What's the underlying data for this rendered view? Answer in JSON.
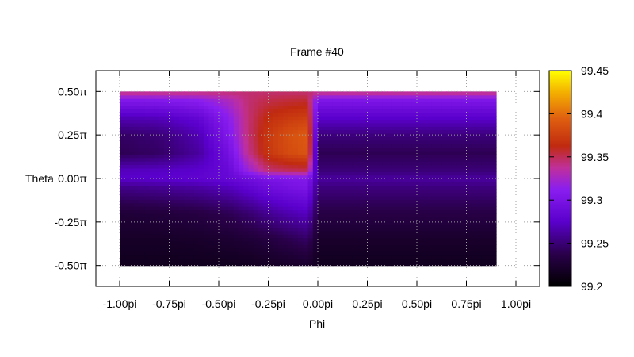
{
  "chart_data": {
    "type": "heatmap",
    "title": "Frame #40",
    "xlabel": "Phi",
    "ylabel": "Theta",
    "xlim": [
      -1.12,
      1.12
    ],
    "ylim": [
      -0.62,
      0.62
    ],
    "grid": true,
    "x_ticks": [
      {
        "value": -1.0,
        "label": "-1.00pi"
      },
      {
        "value": -0.75,
        "label": "-0.75pi"
      },
      {
        "value": -0.5,
        "label": "-0.50pi"
      },
      {
        "value": -0.25,
        "label": "-0.25pi"
      },
      {
        "value": 0.0,
        "label": "0.00pi"
      },
      {
        "value": 0.25,
        "label": "0.25pi"
      },
      {
        "value": 0.5,
        "label": "0.50pi"
      },
      {
        "value": 0.75,
        "label": "0.75pi"
      },
      {
        "value": 1.0,
        "label": "1.00pi"
      }
    ],
    "y_ticks": [
      {
        "value": 0.5,
        "label": "0.50π"
      },
      {
        "value": 0.25,
        "label": "0.25π"
      },
      {
        "value": 0.0,
        "label": "0.00π"
      },
      {
        "value": -0.25,
        "label": "-0.25π"
      },
      {
        "value": -0.5,
        "label": "-0.50π"
      }
    ],
    "data_extent": {
      "x": [
        -1.0,
        0.9
      ],
      "y": [
        -0.5,
        0.5
      ]
    },
    "colorbar": {
      "range": [
        99.2,
        99.45
      ],
      "ticks": [
        {
          "value": 99.2,
          "label": "99.2"
        },
        {
          "value": 99.25,
          "label": "99.25"
        },
        {
          "value": 99.3,
          "label": "99.3"
        },
        {
          "value": 99.35,
          "label": "99.35"
        },
        {
          "value": 99.4,
          "label": "99.4"
        },
        {
          "value": 99.45,
          "label": "99.45"
        }
      ],
      "palette": "black-purple-red-orange-yellow"
    },
    "phi": [
      -1.0,
      -0.8,
      -0.6,
      -0.45,
      -0.35,
      -0.25,
      -0.15,
      -0.05,
      0.0,
      0.1,
      0.3,
      0.5,
      0.7,
      0.9
    ],
    "theta": [
      -0.5,
      -0.35,
      -0.2,
      -0.05,
      0.0,
      0.05,
      0.15,
      0.25,
      0.35,
      0.45,
      0.5
    ],
    "values": [
      [
        99.215,
        99.215,
        99.215,
        99.215,
        99.216,
        99.218,
        99.22,
        99.222,
        99.215,
        99.215,
        99.215,
        99.215,
        99.215,
        99.215
      ],
      [
        99.22,
        99.22,
        99.222,
        99.225,
        99.228,
        99.232,
        99.238,
        99.245,
        99.222,
        99.222,
        99.222,
        99.222,
        99.222,
        99.222
      ],
      [
        99.228,
        99.23,
        99.234,
        99.24,
        99.248,
        99.258,
        99.266,
        99.272,
        99.235,
        99.235,
        99.235,
        99.235,
        99.235,
        99.235
      ],
      [
        99.255,
        99.258,
        99.263,
        99.27,
        99.28,
        99.29,
        99.296,
        99.3,
        99.252,
        99.252,
        99.252,
        99.252,
        99.252,
        99.252
      ],
      [
        99.275,
        99.277,
        99.28,
        99.284,
        99.292,
        99.3,
        99.304,
        99.306,
        99.262,
        99.262,
        99.262,
        99.262,
        99.262,
        99.262
      ],
      [
        99.27,
        99.272,
        99.276,
        99.286,
        99.32,
        99.345,
        99.35,
        99.352,
        99.25,
        99.25,
        99.25,
        99.25,
        99.25,
        99.25
      ],
      [
        99.24,
        99.245,
        99.262,
        99.295,
        99.34,
        99.37,
        99.382,
        99.388,
        99.24,
        99.24,
        99.24,
        99.24,
        99.24,
        99.24
      ],
      [
        99.245,
        99.25,
        99.268,
        99.305,
        99.345,
        99.372,
        99.385,
        99.392,
        99.252,
        99.252,
        99.252,
        99.252,
        99.252,
        99.252
      ],
      [
        99.268,
        99.27,
        99.282,
        99.312,
        99.345,
        99.365,
        99.372,
        99.376,
        99.275,
        99.275,
        99.275,
        99.275,
        99.275,
        99.275
      ],
      [
        99.305,
        99.306,
        99.312,
        99.328,
        99.345,
        99.352,
        99.355,
        99.357,
        99.302,
        99.302,
        99.302,
        99.302,
        99.302,
        99.302
      ],
      [
        99.345,
        99.345,
        99.345,
        99.345,
        99.345,
        99.345,
        99.345,
        99.345,
        99.345,
        99.345,
        99.345,
        99.345,
        99.345,
        99.345
      ]
    ]
  }
}
